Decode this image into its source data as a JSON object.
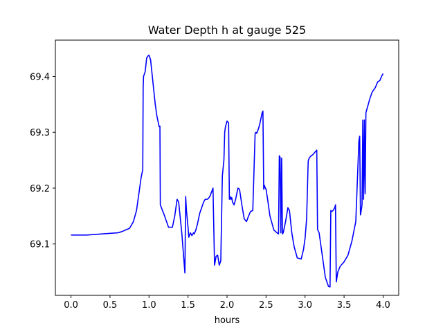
{
  "chart_data": {
    "type": "line",
    "title": "Water Depth h at gauge 525",
    "xlabel": "hours",
    "ylabel": "",
    "xlim": [
      -0.2,
      4.2
    ],
    "ylim": [
      69.008,
      69.465
    ],
    "xticks": [
      0.0,
      0.5,
      1.0,
      1.5,
      2.0,
      2.5,
      3.0,
      3.5,
      4.0
    ],
    "xtick_labels": [
      "0.0",
      "0.5",
      "1.0",
      "1.5",
      "2.0",
      "2.5",
      "3.0",
      "3.5",
      "4.0"
    ],
    "yticks": [
      69.1,
      69.2,
      69.3,
      69.4
    ],
    "ytick_labels": [
      "69.1",
      "69.2",
      "69.3",
      "69.4"
    ],
    "grid": false,
    "series": [
      {
        "color": "#0000ff",
        "x": [
          0.0,
          0.2,
          0.4,
          0.6,
          0.65,
          0.7,
          0.75,
          0.8,
          0.84,
          0.87,
          0.9,
          0.92,
          0.925,
          0.93,
          0.95,
          0.96,
          0.97,
          0.99,
          1.0,
          1.02,
          1.05,
          1.08,
          1.1,
          1.13,
          1.14,
          1.145,
          1.2,
          1.25,
          1.3,
          1.33,
          1.36,
          1.38,
          1.42,
          1.46,
          1.47,
          1.48,
          1.5,
          1.51,
          1.53,
          1.55,
          1.57,
          1.58,
          1.6,
          1.62,
          1.65,
          1.7,
          1.72,
          1.75,
          1.78,
          1.82,
          1.84,
          1.85,
          1.86,
          1.88,
          1.9,
          1.92,
          1.94,
          1.96,
          1.97,
          1.98,
          2.0,
          2.02,
          2.03,
          2.04,
          2.05,
          2.06,
          2.07,
          2.09,
          2.11,
          2.14,
          2.16,
          2.19,
          2.22,
          2.25,
          2.27,
          2.3,
          2.33,
          2.36,
          2.37,
          2.38,
          2.4,
          2.42,
          2.45,
          2.46,
          2.47,
          2.48,
          2.49,
          2.5,
          2.52,
          2.55,
          2.6,
          2.64,
          2.66,
          2.67,
          2.68,
          2.69,
          2.7,
          2.71,
          2.72,
          2.75,
          2.78,
          2.8,
          2.83,
          2.86,
          2.9,
          2.95,
          2.98,
          3.0,
          3.02,
          3.04,
          3.05,
          3.07,
          3.1,
          3.13,
          3.15,
          3.16,
          3.18,
          3.22,
          3.26,
          3.3,
          3.32,
          3.33,
          3.34,
          3.36,
          3.38,
          3.39,
          3.4,
          3.42,
          3.45,
          3.5,
          3.55,
          3.6,
          3.65,
          3.69,
          3.7,
          3.71,
          3.72,
          3.73,
          3.74,
          3.75,
          3.76,
          3.77,
          3.78,
          3.8,
          3.83,
          3.86,
          3.9,
          3.93,
          3.96,
          3.98,
          4.0
        ],
        "y": [
          69.116,
          69.116,
          69.118,
          69.12,
          69.122,
          69.125,
          69.128,
          69.14,
          69.16,
          69.19,
          69.22,
          69.233,
          69.38,
          69.4,
          69.408,
          69.42,
          69.433,
          69.437,
          69.438,
          69.43,
          69.39,
          69.35,
          69.33,
          69.31,
          69.311,
          69.17,
          69.15,
          69.13,
          69.13,
          69.15,
          69.18,
          69.175,
          69.12,
          69.048,
          69.185,
          69.16,
          69.13,
          69.112,
          69.12,
          69.115,
          69.12,
          69.118,
          69.125,
          69.135,
          69.155,
          69.175,
          69.18,
          69.18,
          69.185,
          69.2,
          69.062,
          69.07,
          69.078,
          69.08,
          69.062,
          69.07,
          69.222,
          69.25,
          69.3,
          69.31,
          69.32,
          69.317,
          69.18,
          69.185,
          69.18,
          69.183,
          69.175,
          69.17,
          69.18,
          69.2,
          69.198,
          69.17,
          69.145,
          69.14,
          69.148,
          69.158,
          69.16,
          69.298,
          69.3,
          69.298,
          69.305,
          69.315,
          69.335,
          69.338,
          69.198,
          69.205,
          69.2,
          69.198,
          69.18,
          69.15,
          69.125,
          69.12,
          69.118,
          69.258,
          69.255,
          69.12,
          69.254,
          69.118,
          69.12,
          69.14,
          69.165,
          69.16,
          69.12,
          69.095,
          69.075,
          69.073,
          69.09,
          69.11,
          69.145,
          69.248,
          69.253,
          69.257,
          69.26,
          69.265,
          69.268,
          69.126,
          69.12,
          69.08,
          69.04,
          69.024,
          69.023,
          69.16,
          69.158,
          69.16,
          69.165,
          69.17,
          69.032,
          69.05,
          69.06,
          69.068,
          69.08,
          69.105,
          69.14,
          69.285,
          69.293,
          69.152,
          69.16,
          69.17,
          69.322,
          69.18,
          69.322,
          69.19,
          69.335,
          69.345,
          69.36,
          69.372,
          69.38,
          69.39,
          69.393,
          69.4,
          69.405
        ]
      }
    ]
  }
}
